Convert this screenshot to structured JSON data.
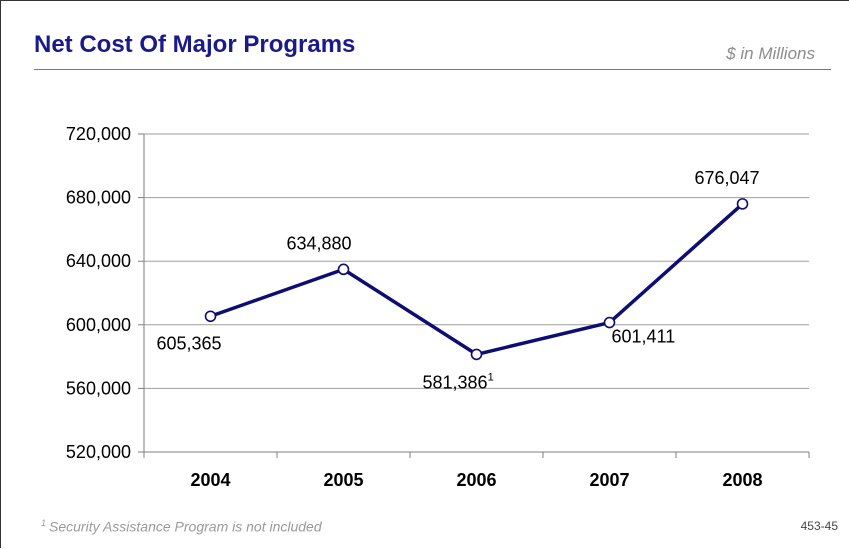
{
  "slide": {
    "title": "Net Cost Of Major Programs",
    "units": "$ in Millions",
    "footnote_marker": "1",
    "footnote_text": "Security Assistance Program is not included",
    "page_number": "453-45"
  },
  "chart_data": {
    "type": "line",
    "title": "Net Cost Of Major Programs",
    "xlabel": "",
    "ylabel": "",
    "categories": [
      "2004",
      "2005",
      "2006",
      "2007",
      "2008"
    ],
    "series": [
      {
        "values": [
          605365,
          634880,
          581386,
          601411,
          676047
        ],
        "labels": [
          "605,365",
          "634,880",
          "581,386",
          "601,411",
          "676,047"
        ],
        "footnote_marks": [
          "",
          "",
          "1",
          "",
          ""
        ],
        "color": "#0d0d73"
      }
    ],
    "ylim": [
      520000,
      720000
    ],
    "yticks": [
      520000,
      560000,
      600000,
      640000,
      680000,
      720000
    ],
    "ytick_labels": [
      "520,000",
      "560,000",
      "600,000",
      "640,000",
      "680,000",
      "720,000"
    ],
    "grid": true,
    "legend": "none"
  }
}
